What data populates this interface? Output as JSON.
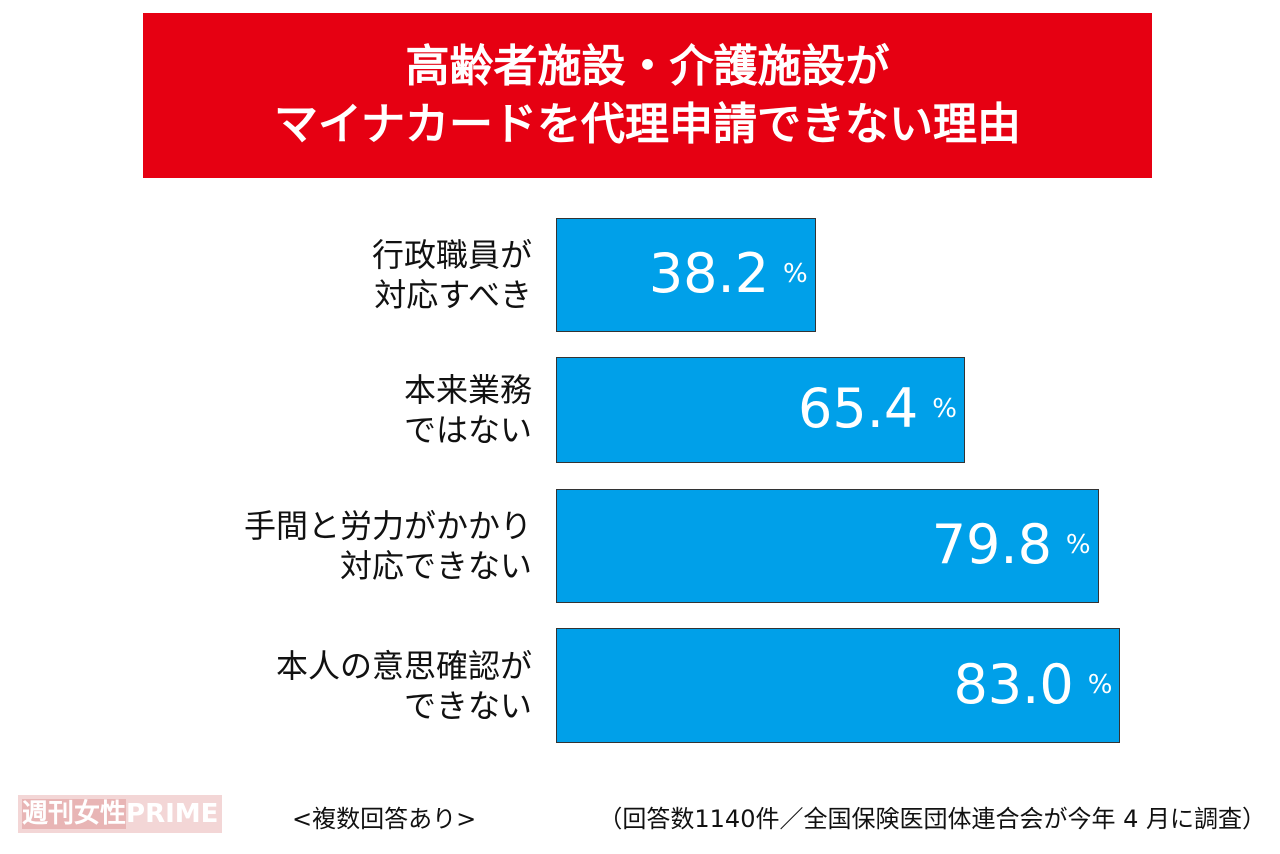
{
  "chart_data": {
    "type": "bar",
    "orientation": "horizontal",
    "title_lines": [
      "高齢者施設・介護施設が",
      "マイナカードを代理申請できない理由"
    ],
    "categories": [
      "行政職員が\n対応すべき",
      "本来業務\nではない",
      "手間と労力がかかり\n対応できない",
      "本人の意思確認が\nできない"
    ],
    "values": [
      38.2,
      65.4,
      79.8,
      83.0
    ],
    "value_labels": [
      "38.2",
      "65.4",
      "79.8",
      "83.0"
    ],
    "unit": "%",
    "bar_color": "#00a0e9",
    "title_color": "#e60012",
    "grid": false,
    "legend": "none"
  },
  "footer": {
    "logo_text_jp": "週刊女性",
    "logo_text_en": "PRIME",
    "note": "<複数回答あり>",
    "source": "（回答数1140件／全国保険医団体連合会が今年 4 月に調査）"
  }
}
